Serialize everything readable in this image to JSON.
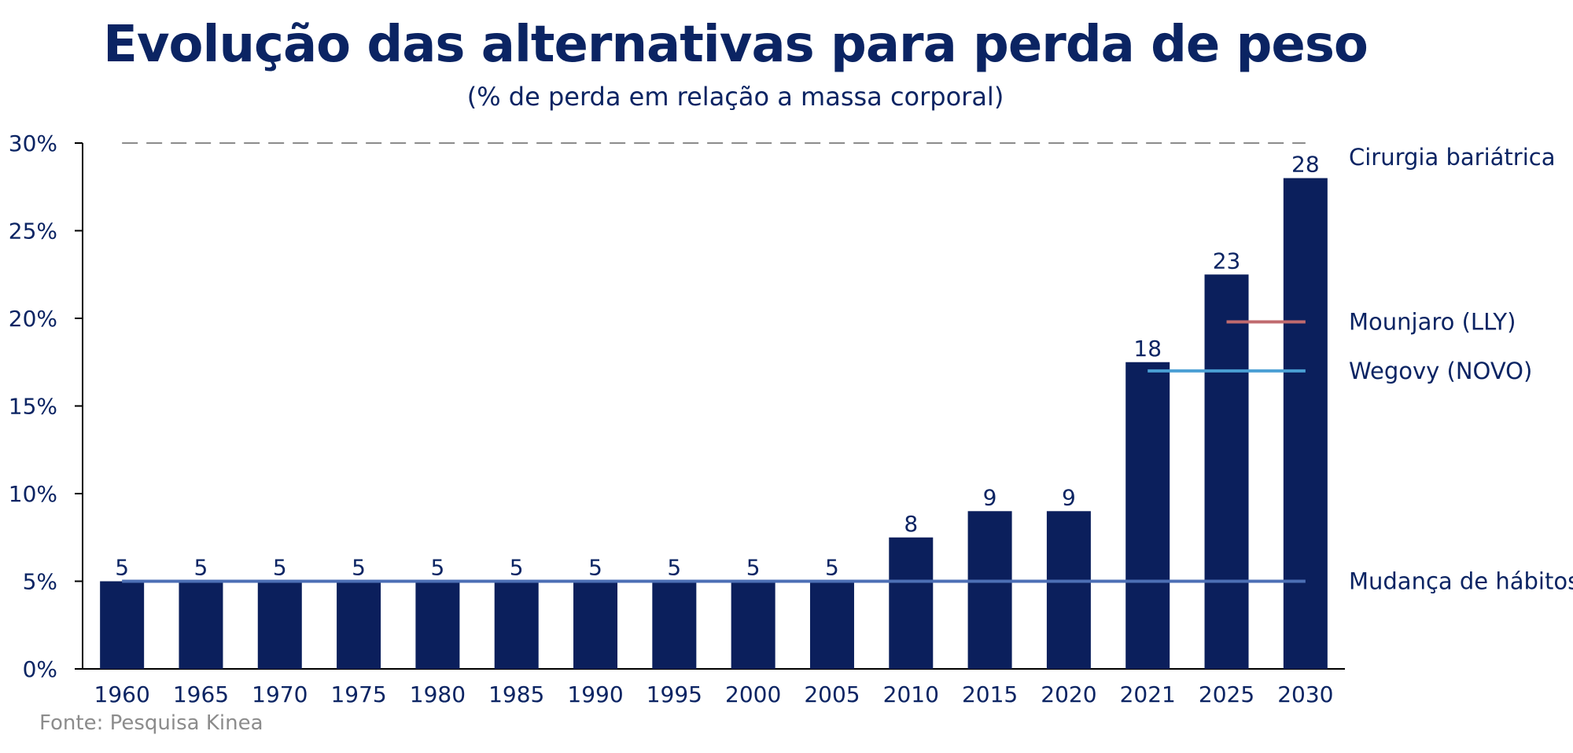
{
  "chart_data": {
    "type": "bar",
    "title": "Evolução das alternativas para perda de peso",
    "subtitle": "(% de perda em relação a massa corporal)",
    "categories": [
      "1960",
      "1965",
      "1970",
      "1975",
      "1980",
      "1985",
      "1990",
      "1995",
      "2000",
      "2005",
      "2010",
      "2015",
      "2020",
      "2021",
      "2025",
      "2030"
    ],
    "values": [
      5,
      5,
      5,
      5,
      5,
      5,
      5,
      5,
      5,
      5,
      7.5,
      9,
      9,
      17.5,
      22.5,
      28
    ],
    "data_labels": [
      "5",
      "5",
      "5",
      "5",
      "5",
      "5",
      "5",
      "5",
      "5",
      "5",
      "8",
      "9",
      "9",
      "18",
      "23",
      "28"
    ],
    "ylim": [
      0,
      30
    ],
    "yticks": [
      0,
      5,
      10,
      15,
      20,
      25,
      30
    ],
    "ytick_labels": [
      "0%",
      "5%",
      "10%",
      "15%",
      "20%",
      "25%",
      "30%"
    ],
    "bar_color": "#0b1f5c",
    "reference_lines": [
      {
        "label": "Cirurgia bariátrica",
        "value": 30,
        "label_value": 29.2,
        "from": "1960",
        "to": "2030",
        "style": "dashed",
        "color": "#8c8c8c"
      },
      {
        "label": "Mounjaro (LLY)",
        "value": 19.8,
        "label_value": 19.8,
        "from": "2025",
        "to": "2030",
        "style": "solid",
        "color": "#c06a6e"
      },
      {
        "label": "Wegovy (NOVO)",
        "value": 17,
        "label_value": 17,
        "from": "2021",
        "to": "2030",
        "style": "solid",
        "color": "#4a9fd4"
      },
      {
        "label": "Mudança de hábitos",
        "value": 5,
        "label_value": 5,
        "from": "1960",
        "to": "2030",
        "style": "solid",
        "color": "#4c6fb5"
      }
    ],
    "grid": false,
    "legend": "none"
  },
  "source": "Fonte: Pesquisa Kinea"
}
